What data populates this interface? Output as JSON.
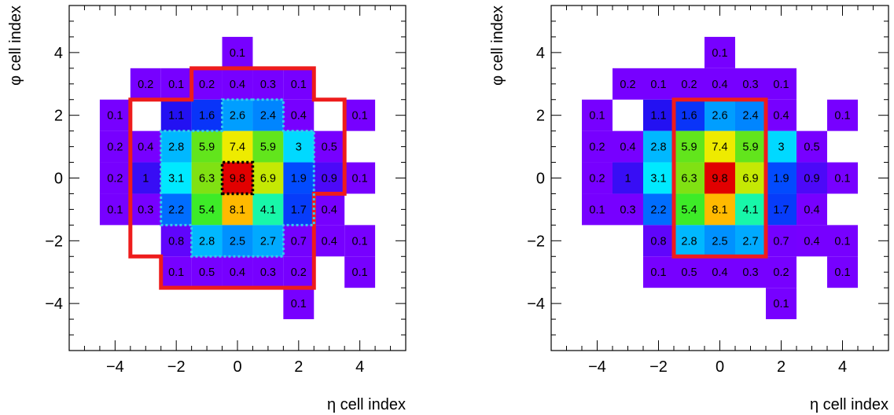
{
  "chart_data": [
    {
      "type": "heatmap",
      "xlabel": "η cell index",
      "ylabel": "φ cell index",
      "xlim": [
        -5.5,
        5.5
      ],
      "ylim": [
        -5.5,
        5.5
      ],
      "xticks": [
        -4,
        -2,
        0,
        2,
        4
      ],
      "yticks": [
        -4,
        -2,
        0,
        2,
        4
      ],
      "xtick_labels": [
        "−4",
        "−2",
        "0",
        "2",
        "4"
      ],
      "ytick_labels": [
        "−4",
        "−2",
        "0",
        "2",
        "4"
      ],
      "color_scale_max": 9.8,
      "cells": [
        {
          "x": 0,
          "y": 4,
          "v": 0.1
        },
        {
          "x": -3,
          "y": 3,
          "v": 0.2
        },
        {
          "x": -2,
          "y": 3,
          "v": 0.1
        },
        {
          "x": -1,
          "y": 3,
          "v": 0.2
        },
        {
          "x": 0,
          "y": 3,
          "v": 0.4
        },
        {
          "x": 1,
          "y": 3,
          "v": 0.3
        },
        {
          "x": 2,
          "y": 3,
          "v": 0.1
        },
        {
          "x": -4,
          "y": 2,
          "v": 0.1
        },
        {
          "x": -2,
          "y": 2,
          "v": 1.1
        },
        {
          "x": -1,
          "y": 2,
          "v": 1.6
        },
        {
          "x": 0,
          "y": 2,
          "v": 2.6
        },
        {
          "x": 1,
          "y": 2,
          "v": 2.4
        },
        {
          "x": 2,
          "y": 2,
          "v": 0.4
        },
        {
          "x": 4,
          "y": 2,
          "v": 0.1
        },
        {
          "x": -4,
          "y": 1,
          "v": 0.2
        },
        {
          "x": -3,
          "y": 1,
          "v": 0.4
        },
        {
          "x": -2,
          "y": 1,
          "v": 2.8
        },
        {
          "x": -1,
          "y": 1,
          "v": 5.9
        },
        {
          "x": 0,
          "y": 1,
          "v": 7.4
        },
        {
          "x": 1,
          "y": 1,
          "v": 5.9
        },
        {
          "x": 2,
          "y": 1,
          "v": 3
        },
        {
          "x": 3,
          "y": 1,
          "v": 0.5
        },
        {
          "x": -4,
          "y": 0,
          "v": 0.2
        },
        {
          "x": -3,
          "y": 0,
          "v": 1
        },
        {
          "x": -2,
          "y": 0,
          "v": 3.1
        },
        {
          "x": -1,
          "y": 0,
          "v": 6.3
        },
        {
          "x": 0,
          "y": 0,
          "v": 9.8
        },
        {
          "x": 1,
          "y": 0,
          "v": 6.9
        },
        {
          "x": 2,
          "y": 0,
          "v": 1.9
        },
        {
          "x": 3,
          "y": 0,
          "v": 0.9
        },
        {
          "x": 4,
          "y": 0,
          "v": 0.1
        },
        {
          "x": -4,
          "y": -1,
          "v": 0.1
        },
        {
          "x": -3,
          "y": -1,
          "v": 0.3
        },
        {
          "x": -2,
          "y": -1,
          "v": 2.2
        },
        {
          "x": -1,
          "y": -1,
          "v": 5.4
        },
        {
          "x": 0,
          "y": -1,
          "v": 8.1
        },
        {
          "x": 1,
          "y": -1,
          "v": 4.1
        },
        {
          "x": 2,
          "y": -1,
          "v": 1.7
        },
        {
          "x": 3,
          "y": -1,
          "v": 0.4
        },
        {
          "x": -2,
          "y": -2,
          "v": 0.8
        },
        {
          "x": -1,
          "y": -2,
          "v": 2.8
        },
        {
          "x": 0,
          "y": -2,
          "v": 2.5
        },
        {
          "x": 1,
          "y": -2,
          "v": 2.7
        },
        {
          "x": 2,
          "y": -2,
          "v": 0.7
        },
        {
          "x": 3,
          "y": -2,
          "v": 0.4
        },
        {
          "x": 4,
          "y": -2,
          "v": 0.1
        },
        {
          "x": -2,
          "y": -3,
          "v": 0.1
        },
        {
          "x": -1,
          "y": -3,
          "v": 0.5
        },
        {
          "x": 0,
          "y": -3,
          "v": 0.4
        },
        {
          "x": 1,
          "y": -3,
          "v": 0.3
        },
        {
          "x": 2,
          "y": -3,
          "v": 0.2
        },
        {
          "x": 4,
          "y": -3,
          "v": 0.1
        },
        {
          "x": 2,
          "y": -4,
          "v": 0.1
        }
      ],
      "clusters": [
        {
          "style": "solid-red",
          "cells": [
            [
              -1,
              3
            ],
            [
              0,
              3
            ],
            [
              1,
              3
            ],
            [
              2,
              3
            ],
            [
              -3,
              2
            ],
            [
              -2,
              2
            ],
            [
              -1,
              2
            ],
            [
              0,
              2
            ],
            [
              1,
              2
            ],
            [
              2,
              2
            ],
            [
              3,
              2
            ],
            [
              -3,
              1
            ],
            [
              -2,
              1
            ],
            [
              -1,
              1
            ],
            [
              0,
              1
            ],
            [
              1,
              1
            ],
            [
              2,
              1
            ],
            [
              3,
              1
            ],
            [
              -3,
              0
            ],
            [
              -2,
              0
            ],
            [
              -1,
              0
            ],
            [
              0,
              0
            ],
            [
              1,
              0
            ],
            [
              2,
              0
            ],
            [
              3,
              0
            ],
            [
              -3,
              -1
            ],
            [
              -2,
              -1
            ],
            [
              -1,
              -1
            ],
            [
              0,
              -1
            ],
            [
              1,
              -1
            ],
            [
              2,
              -1
            ],
            [
              -3,
              -2
            ],
            [
              -2,
              -2
            ],
            [
              -1,
              -2
            ],
            [
              0,
              -2
            ],
            [
              1,
              -2
            ],
            [
              2,
              -2
            ],
            [
              -2,
              -3
            ],
            [
              -1,
              -3
            ],
            [
              0,
              -3
            ],
            [
              1,
              -3
            ],
            [
              2,
              -3
            ]
          ]
        },
        {
          "style": "dotted-cyan",
          "cells": [
            [
              0,
              2
            ],
            [
              1,
              2
            ],
            [
              -2,
              1
            ],
            [
              -1,
              1
            ],
            [
              0,
              1
            ],
            [
              1,
              1
            ],
            [
              2,
              1
            ],
            [
              -2,
              0
            ],
            [
              -1,
              0
            ],
            [
              0,
              0
            ],
            [
              1,
              0
            ],
            [
              2,
              0
            ],
            [
              -2,
              -1
            ],
            [
              -1,
              -1
            ],
            [
              0,
              -1
            ],
            [
              1,
              -1
            ],
            [
              2,
              -1
            ],
            [
              -1,
              -2
            ],
            [
              0,
              -2
            ],
            [
              1,
              -2
            ]
          ]
        },
        {
          "style": "dotted-black",
          "cells": [
            [
              0,
              0
            ]
          ]
        }
      ]
    },
    {
      "type": "heatmap",
      "xlabel": "η cell index",
      "ylabel": "φ cell index",
      "xlim": [
        -5.5,
        5.5
      ],
      "ylim": [
        -5.5,
        5.5
      ],
      "xticks": [
        -4,
        -2,
        0,
        2,
        4
      ],
      "yticks": [
        -4,
        -2,
        0,
        2,
        4
      ],
      "xtick_labels": [
        "−4",
        "−2",
        "0",
        "2",
        "4"
      ],
      "ytick_labels": [
        "−4",
        "−2",
        "0",
        "2",
        "4"
      ],
      "color_scale_max": 9.8,
      "cells": [
        {
          "x": 0,
          "y": 4,
          "v": 0.1
        },
        {
          "x": -3,
          "y": 3,
          "v": 0.2
        },
        {
          "x": -2,
          "y": 3,
          "v": 0.1
        },
        {
          "x": -1,
          "y": 3,
          "v": 0.2
        },
        {
          "x": 0,
          "y": 3,
          "v": 0.4
        },
        {
          "x": 1,
          "y": 3,
          "v": 0.3
        },
        {
          "x": 2,
          "y": 3,
          "v": 0.1
        },
        {
          "x": -4,
          "y": 2,
          "v": 0.1
        },
        {
          "x": -2,
          "y": 2,
          "v": 1.1
        },
        {
          "x": -1,
          "y": 2,
          "v": 1.6
        },
        {
          "x": 0,
          "y": 2,
          "v": 2.6
        },
        {
          "x": 1,
          "y": 2,
          "v": 2.4
        },
        {
          "x": 2,
          "y": 2,
          "v": 0.4
        },
        {
          "x": 4,
          "y": 2,
          "v": 0.1
        },
        {
          "x": -4,
          "y": 1,
          "v": 0.2
        },
        {
          "x": -3,
          "y": 1,
          "v": 0.4
        },
        {
          "x": -2,
          "y": 1,
          "v": 2.8
        },
        {
          "x": -1,
          "y": 1,
          "v": 5.9
        },
        {
          "x": 0,
          "y": 1,
          "v": 7.4
        },
        {
          "x": 1,
          "y": 1,
          "v": 5.9
        },
        {
          "x": 2,
          "y": 1,
          "v": 3
        },
        {
          "x": 3,
          "y": 1,
          "v": 0.5
        },
        {
          "x": -4,
          "y": 0,
          "v": 0.2
        },
        {
          "x": -3,
          "y": 0,
          "v": 1
        },
        {
          "x": -2,
          "y": 0,
          "v": 3.1
        },
        {
          "x": -1,
          "y": 0,
          "v": 6.3
        },
        {
          "x": 0,
          "y": 0,
          "v": 9.8
        },
        {
          "x": 1,
          "y": 0,
          "v": 6.9
        },
        {
          "x": 2,
          "y": 0,
          "v": 1.9
        },
        {
          "x": 3,
          "y": 0,
          "v": 0.9
        },
        {
          "x": 4,
          "y": 0,
          "v": 0.1
        },
        {
          "x": -4,
          "y": -1,
          "v": 0.1
        },
        {
          "x": -3,
          "y": -1,
          "v": 0.3
        },
        {
          "x": -2,
          "y": -1,
          "v": 2.2
        },
        {
          "x": -1,
          "y": -1,
          "v": 5.4
        },
        {
          "x": 0,
          "y": -1,
          "v": 8.1
        },
        {
          "x": 1,
          "y": -1,
          "v": 4.1
        },
        {
          "x": 2,
          "y": -1,
          "v": 1.7
        },
        {
          "x": 3,
          "y": -1,
          "v": 0.4
        },
        {
          "x": -2,
          "y": -2,
          "v": 0.8
        },
        {
          "x": -1,
          "y": -2,
          "v": 2.8
        },
        {
          "x": 0,
          "y": -2,
          "v": 2.5
        },
        {
          "x": 1,
          "y": -2,
          "v": 2.7
        },
        {
          "x": 2,
          "y": -2,
          "v": 0.7
        },
        {
          "x": 3,
          "y": -2,
          "v": 0.4
        },
        {
          "x": 4,
          "y": -2,
          "v": 0.1
        },
        {
          "x": -2,
          "y": -3,
          "v": 0.1
        },
        {
          "x": -1,
          "y": -3,
          "v": 0.5
        },
        {
          "x": 0,
          "y": -3,
          "v": 0.4
        },
        {
          "x": 1,
          "y": -3,
          "v": 0.3
        },
        {
          "x": 2,
          "y": -3,
          "v": 0.2
        },
        {
          "x": 4,
          "y": -3,
          "v": 0.1
        },
        {
          "x": 2,
          "y": -4,
          "v": 0.1
        }
      ],
      "clusters": [
        {
          "style": "solid-red",
          "cells": [
            [
              -1,
              2
            ],
            [
              0,
              2
            ],
            [
              1,
              2
            ],
            [
              -1,
              1
            ],
            [
              0,
              1
            ],
            [
              1,
              1
            ],
            [
              -1,
              0
            ],
            [
              0,
              0
            ],
            [
              1,
              0
            ],
            [
              -1,
              -1
            ],
            [
              0,
              -1
            ],
            [
              1,
              -1
            ],
            [
              -1,
              -2
            ],
            [
              0,
              -2
            ],
            [
              1,
              -2
            ]
          ]
        }
      ]
    }
  ]
}
